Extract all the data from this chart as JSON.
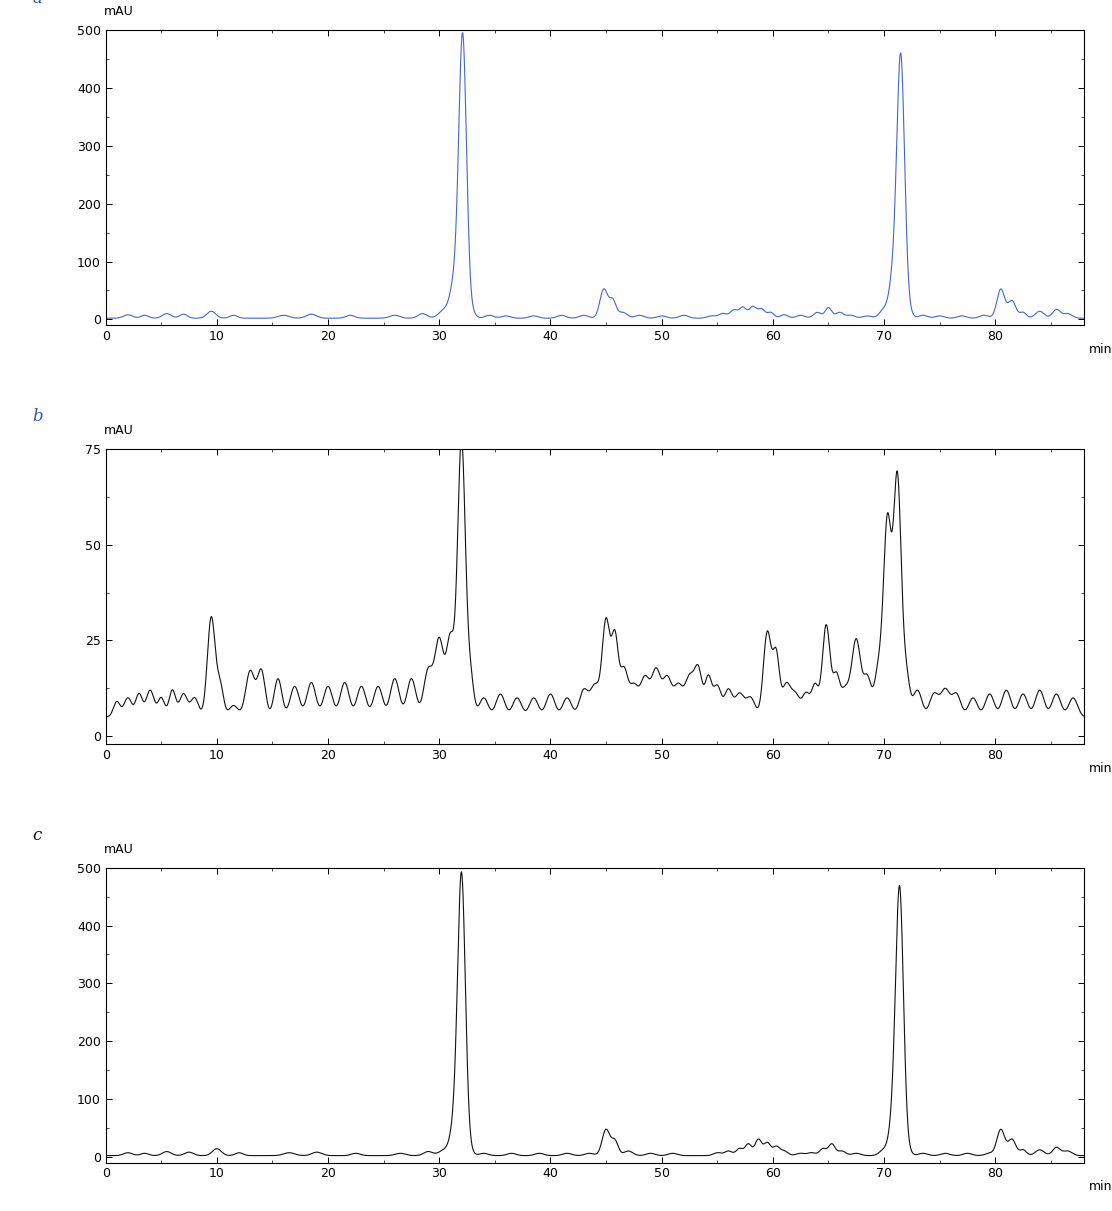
{
  "panels": [
    {
      "label": "a",
      "color": "#4466cc",
      "ylim": [
        -10,
        500
      ],
      "yticks": [
        0,
        100,
        200,
        300,
        400,
        500
      ],
      "ylabel": "mAU",
      "xlim": [
        0,
        88
      ],
      "xticks": [
        0,
        10,
        20,
        30,
        40,
        50,
        60,
        70,
        80
      ],
      "xlabel": "min",
      "baseline": 2.0,
      "noise": 0.0
    },
    {
      "label": "b",
      "color": "#111111",
      "ylim": [
        -2,
        75
      ],
      "yticks": [
        0,
        25,
        50,
        75
      ],
      "ylabel": "mAU",
      "xlim": [
        0,
        88
      ],
      "xticks": [
        0,
        10,
        20,
        30,
        40,
        50,
        60,
        70,
        80
      ],
      "xlabel": "min",
      "baseline": 5.0,
      "noise": 0.0
    },
    {
      "label": "c",
      "color": "#111111",
      "ylim": [
        -10,
        500
      ],
      "yticks": [
        0,
        100,
        200,
        300,
        400,
        500
      ],
      "ylabel": "mAU",
      "xlim": [
        0,
        88
      ],
      "xticks": [
        0,
        10,
        20,
        30,
        40,
        50,
        60,
        70,
        80
      ],
      "xlabel": "min",
      "baseline": 2.0,
      "noise": 0.0
    }
  ],
  "background_color": "#ffffff",
  "label_color": "#3355aa"
}
